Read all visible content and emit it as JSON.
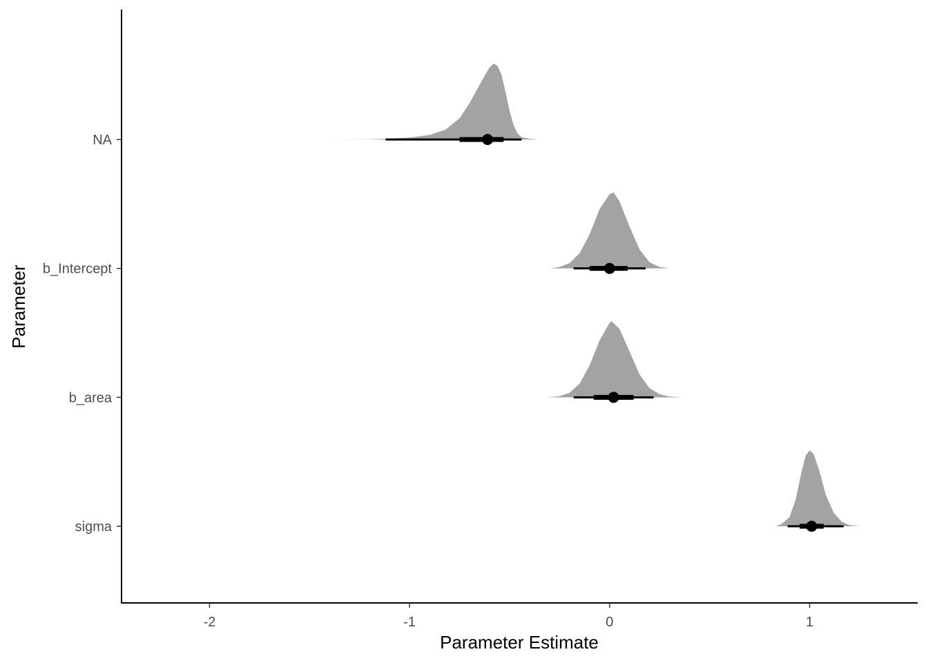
{
  "chart_data": {
    "type": "halfeye",
    "xlabel": "Parameter Estimate",
    "ylabel": "Parameter",
    "xlim": [
      -2.44,
      1.54
    ],
    "x_ticks": [
      {
        "value": -2,
        "label": "-2"
      },
      {
        "value": -1,
        "label": "-1"
      },
      {
        "value": 0,
        "label": "0"
      },
      {
        "value": 1,
        "label": "1"
      }
    ],
    "categories": [
      "NA",
      "b_Intercept",
      "b_area",
      "sigma"
    ],
    "series": [
      {
        "category": "NA",
        "median": -0.61,
        "interval_66": [
          -0.75,
          -0.53
        ],
        "interval_95": [
          -1.12,
          -0.44
        ],
        "density": [
          [
            -1.4,
            0.0
          ],
          [
            -1.2,
            0.003
          ],
          [
            -1.1,
            0.012
          ],
          [
            -1.0,
            0.025
          ],
          [
            -0.9,
            0.06
          ],
          [
            -0.82,
            0.13
          ],
          [
            -0.75,
            0.28
          ],
          [
            -0.7,
            0.48
          ],
          [
            -0.65,
            0.72
          ],
          [
            -0.62,
            0.86
          ],
          [
            -0.6,
            0.95
          ],
          [
            -0.58,
            1.0
          ],
          [
            -0.56,
            0.97
          ],
          [
            -0.54,
            0.85
          ],
          [
            -0.52,
            0.62
          ],
          [
            -0.5,
            0.38
          ],
          [
            -0.48,
            0.19
          ],
          [
            -0.46,
            0.08
          ],
          [
            -0.44,
            0.03
          ],
          [
            -0.4,
            0.01
          ],
          [
            -0.36,
            0.0
          ]
        ]
      },
      {
        "category": "b_Intercept",
        "median": 0.0,
        "interval_66": [
          -0.1,
          0.09
        ],
        "interval_95": [
          -0.18,
          0.18
        ],
        "density": [
          [
            -0.3,
            0.0
          ],
          [
            -0.25,
            0.02
          ],
          [
            -0.2,
            0.07
          ],
          [
            -0.15,
            0.2
          ],
          [
            -0.1,
            0.45
          ],
          [
            -0.05,
            0.78
          ],
          [
            0.0,
            0.98
          ],
          [
            0.02,
            1.0
          ],
          [
            0.05,
            0.88
          ],
          [
            0.1,
            0.55
          ],
          [
            0.15,
            0.25
          ],
          [
            0.2,
            0.08
          ],
          [
            0.25,
            0.02
          ],
          [
            0.3,
            0.0
          ]
        ]
      },
      {
        "category": "b_area",
        "median": 0.02,
        "interval_66": [
          -0.08,
          0.12
        ],
        "interval_95": [
          -0.18,
          0.22
        ],
        "density": [
          [
            -0.31,
            0.0
          ],
          [
            -0.25,
            0.015
          ],
          [
            -0.2,
            0.06
          ],
          [
            -0.15,
            0.18
          ],
          [
            -0.1,
            0.42
          ],
          [
            -0.05,
            0.75
          ],
          [
            0.0,
            0.98
          ],
          [
            0.01,
            1.0
          ],
          [
            0.05,
            0.9
          ],
          [
            0.1,
            0.6
          ],
          [
            0.15,
            0.3
          ],
          [
            0.2,
            0.12
          ],
          [
            0.25,
            0.04
          ],
          [
            0.3,
            0.01
          ],
          [
            0.36,
            0.0
          ]
        ]
      },
      {
        "category": "sigma",
        "median": 1.01,
        "interval_66": [
          0.95,
          1.07
        ],
        "interval_95": [
          0.89,
          1.17
        ],
        "density": [
          [
            0.83,
            0.0
          ],
          [
            0.86,
            0.03
          ],
          [
            0.9,
            0.12
          ],
          [
            0.93,
            0.35
          ],
          [
            0.96,
            0.72
          ],
          [
            0.98,
            0.93
          ],
          [
            1.0,
            1.0
          ],
          [
            1.02,
            0.95
          ],
          [
            1.05,
            0.72
          ],
          [
            1.08,
            0.42
          ],
          [
            1.12,
            0.18
          ],
          [
            1.16,
            0.06
          ],
          [
            1.2,
            0.015
          ],
          [
            1.25,
            0.0
          ]
        ]
      }
    ],
    "colors": {
      "density": "#a3a3a3",
      "interval": "#000000"
    },
    "grid": false,
    "legend": "none"
  }
}
